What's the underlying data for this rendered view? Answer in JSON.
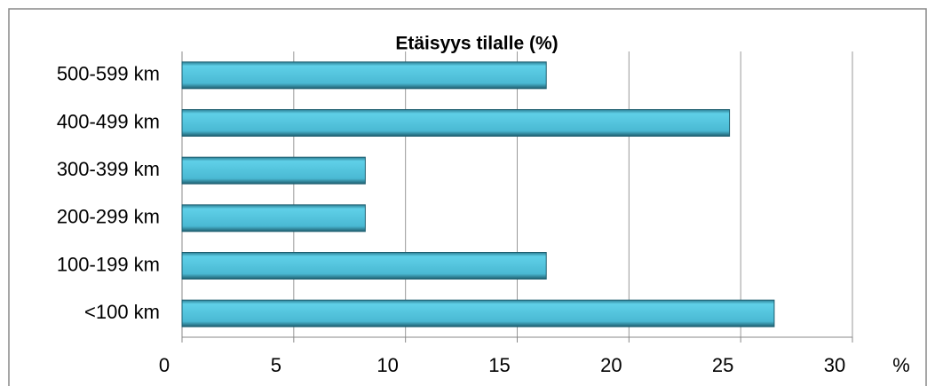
{
  "chart_data": {
    "type": "bar",
    "orientation": "horizontal",
    "title": "Etäisyys tilalle (%)",
    "categories": [
      "<100 km",
      "100-199 km",
      "200-299 km",
      "300-399 km",
      "400-499 km",
      "500-599 km"
    ],
    "values": [
      26.5,
      16.3,
      8.2,
      8.2,
      24.5,
      16.3
    ],
    "color": "#4fc3dd",
    "xlabel": "%",
    "xlim": [
      0,
      30
    ],
    "xticks": [
      0,
      5,
      10,
      15,
      20,
      25,
      30
    ],
    "grid": true
  }
}
